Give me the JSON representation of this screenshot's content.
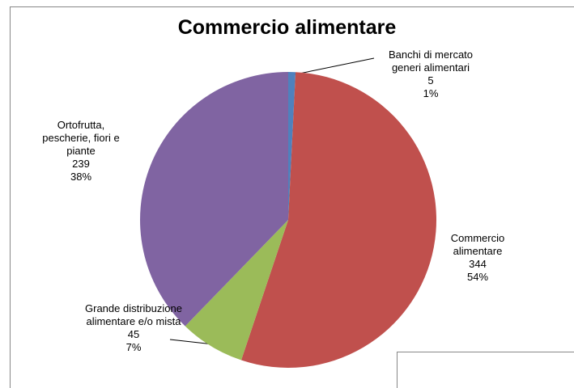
{
  "chart_data": {
    "type": "pie",
    "title": "Commercio alimentare",
    "categories": [
      "Banchi di mercato generi alimentari",
      "Commercio alimentare",
      "Grande distribuzione alimentare e/o mista",
      "Ortofrutta, pescherie, fiori e piante"
    ],
    "values": [
      5,
      344,
      45,
      239
    ],
    "percent_labels": [
      "1%",
      "54%",
      "7%",
      "38%"
    ],
    "colors": [
      "#4f81bd",
      "#c0504d",
      "#9bbb59",
      "#8064a2"
    ]
  }
}
